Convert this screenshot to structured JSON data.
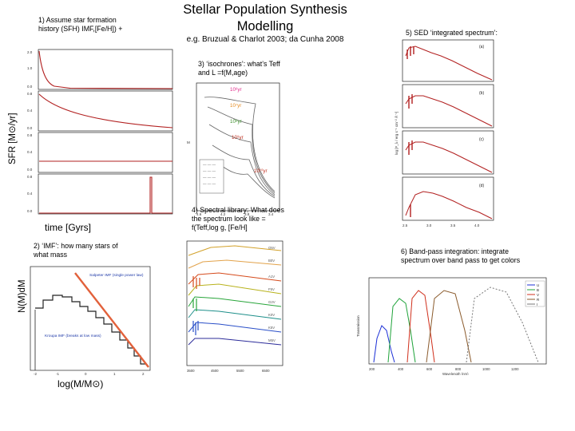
{
  "slide": {
    "title": "Stellar Population Synthesis Modelling",
    "subtitle": "e.g. Bruzual & Charlot 2003; da Cunha 2008"
  },
  "step1": {
    "caption": "1) Assume star formation history (SFH) IMF,[Fe/H]) +",
    "ylabel": "SFR [M⊙/yr]",
    "xlabel": "time [Gyrs]"
  },
  "step2": {
    "caption": "2) ‘IMF’: how many stars of what mass",
    "ylabel": "N(M)dM",
    "xlabel": "log(M/M⊙)",
    "legend1": "Salpeter IMF (single power law)",
    "legend2": "Kroupa IMF (breaks at low mass)"
  },
  "step3": {
    "caption": "3) ‘isochrones’: what’s Teff and L =f(M,age)",
    "ages": [
      "10⁶yr",
      "10⁷yr",
      "10⁸yr",
      "10⁹yr",
      "10¹⁰yr"
    ]
  },
  "step4": {
    "caption": "4) Spectral library: What does the spectrum look like = f(Teff,log g, [Fe/H]"
  },
  "step5": {
    "caption": "5) SED ‘integrated spectrum’:",
    "panel_labels": [
      "(a)",
      "(b)",
      "(c)",
      "(d)"
    ]
  },
  "step6": {
    "caption": "6) Band-pass integration: integrate spectrum over band pass to get colors",
    "bands": [
      "U",
      "B",
      "V",
      "R",
      "I"
    ],
    "band_colors": [
      "#1b2fd6",
      "#1fa33a",
      "#d0301c",
      "#8a5a2b",
      "#777777"
    ]
  },
  "colors": {
    "model": "#b22020",
    "salpeter": "#e2613b",
    "kroupa": "#222222"
  }
}
